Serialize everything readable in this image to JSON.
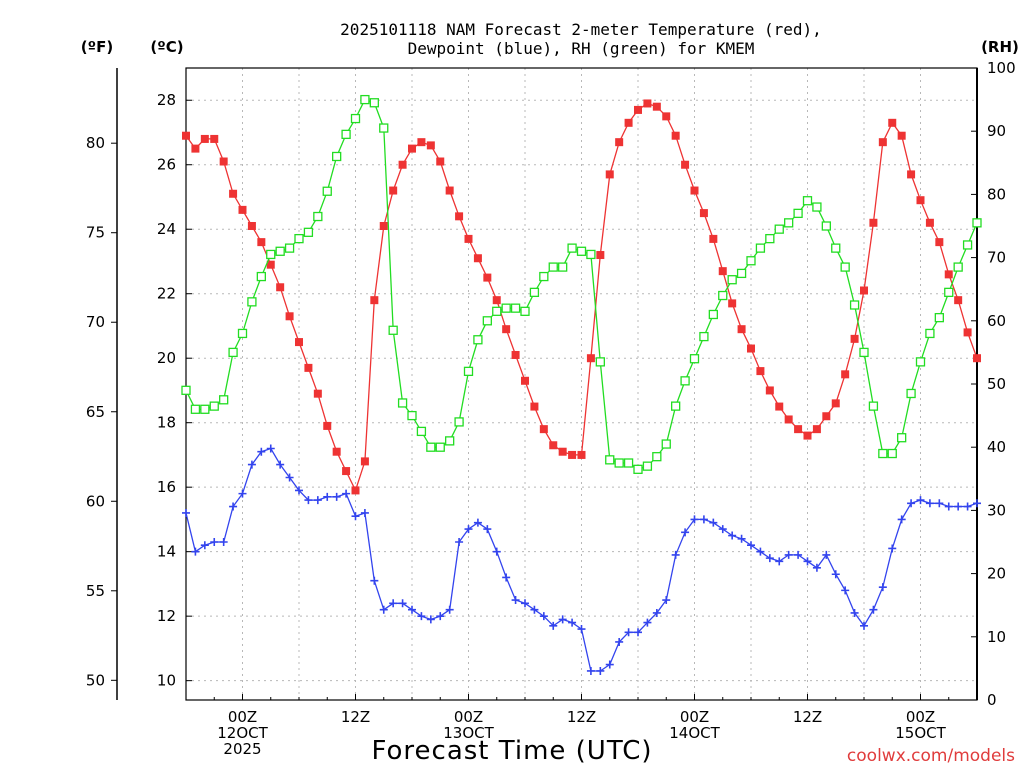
{
  "chart_data": {
    "type": "line",
    "title_lines": [
      "2025101118 NAM Forecast 2-meter Temperature (red),",
      "Dewpoint (blue), RH (green) for KMEM"
    ],
    "xlabel": "Forecast Time (UTC)",
    "units": {
      "fahrenheit": "(ºF)",
      "celsius": "(ºC)",
      "rh": "(RH)"
    },
    "x_start_hour": 18,
    "x_step_hours": 1,
    "xlim_hours": [
      18,
      102
    ],
    "x_ticks": [
      {
        "hour": 24,
        "lines": [
          "00Z",
          "12OCT",
          "2025"
        ]
      },
      {
        "hour": 36,
        "lines": [
          "12Z"
        ]
      },
      {
        "hour": 48,
        "lines": [
          "00Z",
          "13OCT"
        ]
      },
      {
        "hour": 60,
        "lines": [
          "12Z"
        ]
      },
      {
        "hour": 72,
        "lines": [
          "00Z",
          "14OCT"
        ]
      },
      {
        "hour": 84,
        "lines": [
          "12Z"
        ]
      },
      {
        "hour": 96,
        "lines": [
          "00Z",
          "15OCT"
        ]
      }
    ],
    "celsius_axis": {
      "ylim": [
        9.4,
        29.0
      ],
      "ticks": [
        10,
        12,
        14,
        16,
        18,
        20,
        22,
        24,
        26,
        28
      ]
    },
    "fahrenheit_axis": {
      "ylim": [
        48.9,
        84.2
      ],
      "ticks": [
        50,
        55,
        60,
        65,
        70,
        75,
        80
      ]
    },
    "rh_axis": {
      "ylim": [
        0,
        100
      ],
      "ticks": [
        0,
        10,
        20,
        30,
        40,
        50,
        60,
        70,
        80,
        90,
        100
      ]
    },
    "series": [
      {
        "name": "Temperature",
        "unit": "°C",
        "axis": "celsius",
        "color": "#ee3333",
        "marker": "filled-square",
        "values": [
          26.9,
          26.5,
          26.8,
          26.8,
          26.1,
          25.1,
          24.6,
          24.1,
          23.6,
          22.9,
          22.2,
          21.3,
          20.5,
          19.7,
          18.9,
          17.9,
          17.1,
          16.5,
          15.9,
          16.8,
          21.8,
          24.1,
          25.2,
          26.0,
          26.5,
          26.7,
          26.6,
          26.1,
          25.2,
          24.4,
          23.7,
          23.1,
          22.5,
          21.8,
          20.9,
          20.1,
          19.3,
          18.5,
          17.8,
          17.3,
          17.1,
          17.0,
          17.0,
          20.0,
          23.2,
          25.7,
          26.7,
          27.3,
          27.7,
          27.9,
          27.8,
          27.5,
          26.9,
          26.0,
          25.2,
          24.5,
          23.7,
          22.7,
          21.7,
          20.9,
          20.3,
          19.6,
          19.0,
          18.5,
          18.1,
          17.8,
          17.6,
          17.8,
          18.2,
          18.6,
          19.5,
          20.6,
          22.1,
          24.2,
          26.7,
          27.3,
          26.9,
          25.7,
          24.9,
          24.2,
          23.6,
          22.6,
          21.8,
          20.8,
          20.0
        ]
      },
      {
        "name": "Dewpoint",
        "unit": "°C",
        "axis": "celsius",
        "color": "#3344ee",
        "marker": "plus",
        "values": [
          15.2,
          14.0,
          14.2,
          14.3,
          14.3,
          15.4,
          15.8,
          16.7,
          17.1,
          17.2,
          16.7,
          16.3,
          15.9,
          15.6,
          15.6,
          15.7,
          15.7,
          15.8,
          15.1,
          15.2,
          13.1,
          12.2,
          12.4,
          12.4,
          12.2,
          12.0,
          11.9,
          12.0,
          12.2,
          14.3,
          14.7,
          14.9,
          14.7,
          14.0,
          13.2,
          12.5,
          12.4,
          12.2,
          12.0,
          11.7,
          11.9,
          11.8,
          11.6,
          10.3,
          10.3,
          10.5,
          11.2,
          11.5,
          11.5,
          11.8,
          12.1,
          12.5,
          13.9,
          14.6,
          15.0,
          15.0,
          14.9,
          14.7,
          14.5,
          14.4,
          14.2,
          14.0,
          13.8,
          13.7,
          13.9,
          13.9,
          13.7,
          13.5,
          13.9,
          13.3,
          12.8,
          12.1,
          11.7,
          12.2,
          12.9,
          14.1,
          15.0,
          15.5,
          15.6,
          15.5,
          15.5,
          15.4,
          15.4,
          15.4,
          15.5
        ]
      },
      {
        "name": "RH",
        "unit": "%",
        "axis": "rh",
        "color": "#22dd22",
        "marker": "open-square",
        "values": [
          49,
          46,
          46,
          46.5,
          47.5,
          55,
          58,
          63,
          67,
          70.5,
          71,
          71.5,
          73,
          74,
          76.5,
          80.5,
          86,
          89.5,
          92,
          95,
          94.5,
          90.5,
          58.5,
          47,
          45,
          42.5,
          40,
          40,
          41,
          44,
          52,
          57,
          60,
          61.5,
          62,
          62,
          61.5,
          64.5,
          67,
          68.5,
          68.5,
          71.5,
          71,
          70.5,
          53.5,
          38,
          37.5,
          37.5,
          36.5,
          37,
          38.5,
          40.5,
          46.5,
          50.5,
          54,
          57.5,
          61,
          64,
          66.5,
          67.5,
          69.5,
          71.5,
          73,
          74.5,
          75.5,
          77,
          79,
          78,
          75,
          71.5,
          68.5,
          62.5,
          55,
          46.5,
          39,
          39,
          41.5,
          48.5,
          53.5,
          58,
          60.5,
          64.5,
          68.5,
          72,
          75.5
        ]
      }
    ]
  },
  "watermark": "coolwx.com/models",
  "watermark_color": "#e03c3c"
}
